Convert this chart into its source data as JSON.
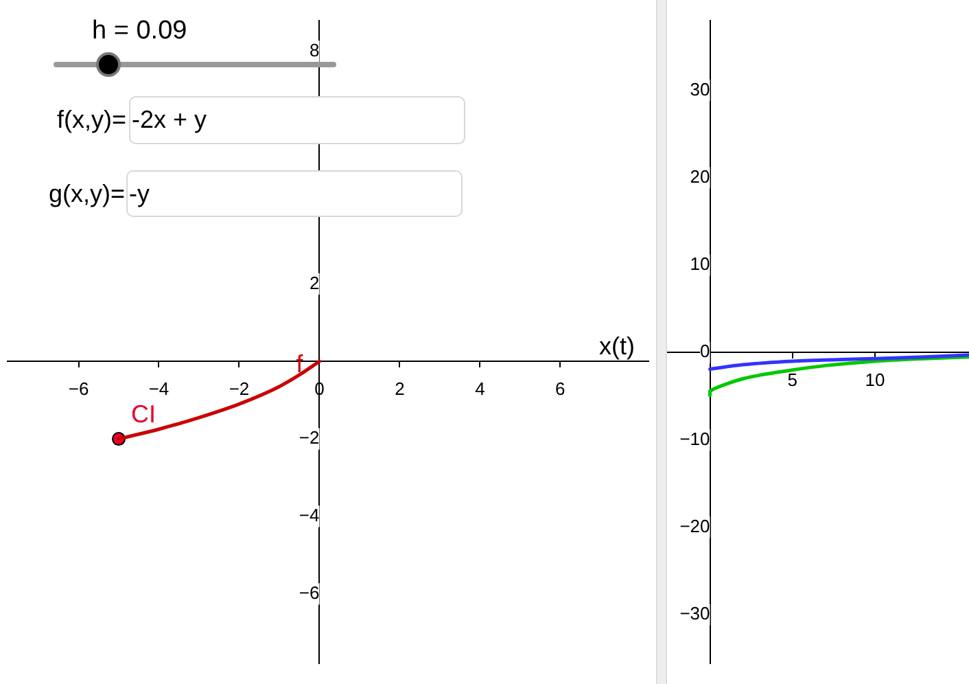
{
  "chart_data": [
    {
      "type": "line",
      "xlabel": "x(t)",
      "xlim": [
        -7.77,
        8.2
      ],
      "ylim": [
        -7.8,
        8.8
      ],
      "xticks": [
        {
          "value": -6,
          "label": "−6"
        },
        {
          "value": -4,
          "label": "−4"
        },
        {
          "value": -2,
          "label": "−2"
        },
        0,
        2,
        4,
        6
      ],
      "yticks": [
        {
          "value": -6,
          "label": "−6"
        },
        {
          "value": -4,
          "label": "−4"
        },
        {
          "value": -2,
          "label": "−2"
        },
        2,
        8
      ],
      "grid": false,
      "legend": false,
      "annotations": [
        "h = 0.09",
        "f(x,y)=",
        "-2x + y",
        "g(x,y)=",
        "-y"
      ],
      "series": [
        {
          "type": "line",
          "name": "f",
          "color": "#cc0000",
          "marker": "none",
          "x": [
            -5,
            -4,
            -3,
            -2,
            -1,
            -0.5,
            0
          ],
          "values": [
            -2,
            -1.75,
            -1.45,
            -1.1,
            -0.65,
            -0.35,
            0
          ]
        },
        {
          "type": "scatter",
          "name": "CI",
          "color": "#e8002a",
          "marker": "circle",
          "x": [
            -5
          ],
          "values": [
            -2
          ]
        }
      ]
    },
    {
      "type": "line",
      "xlim": [
        -2.6,
        15.7
      ],
      "ylim": [
        -35.6,
        38
      ],
      "xticks": [
        5,
        10
      ],
      "yticks": [
        {
          "value": -30,
          "label": "−30"
        },
        {
          "value": -20,
          "label": "−20"
        },
        {
          "value": -10,
          "label": "−10"
        },
        0,
        10,
        20,
        30
      ],
      "grid": false,
      "legend": false,
      "series": [
        {
          "color": "#3333ff",
          "marker": "none",
          "x": [
            0,
            2,
            5,
            8,
            10,
            13,
            15.7
          ],
          "values": [
            -1.9,
            -1.4,
            -1.0,
            -0.8,
            -0.7,
            -0.5,
            -0.3
          ]
        },
        {
          "color": "#00c800",
          "marker": "none",
          "x": [
            0,
            0,
            0.2,
            1,
            2,
            3,
            5,
            7,
            10,
            13,
            15.7
          ],
          "values": [
            -4.9,
            -4.4,
            -4.2,
            -3.6,
            -3.0,
            -2.6,
            -2.0,
            -1.5,
            -1.0,
            -0.7,
            -0.5
          ]
        }
      ]
    }
  ]
}
